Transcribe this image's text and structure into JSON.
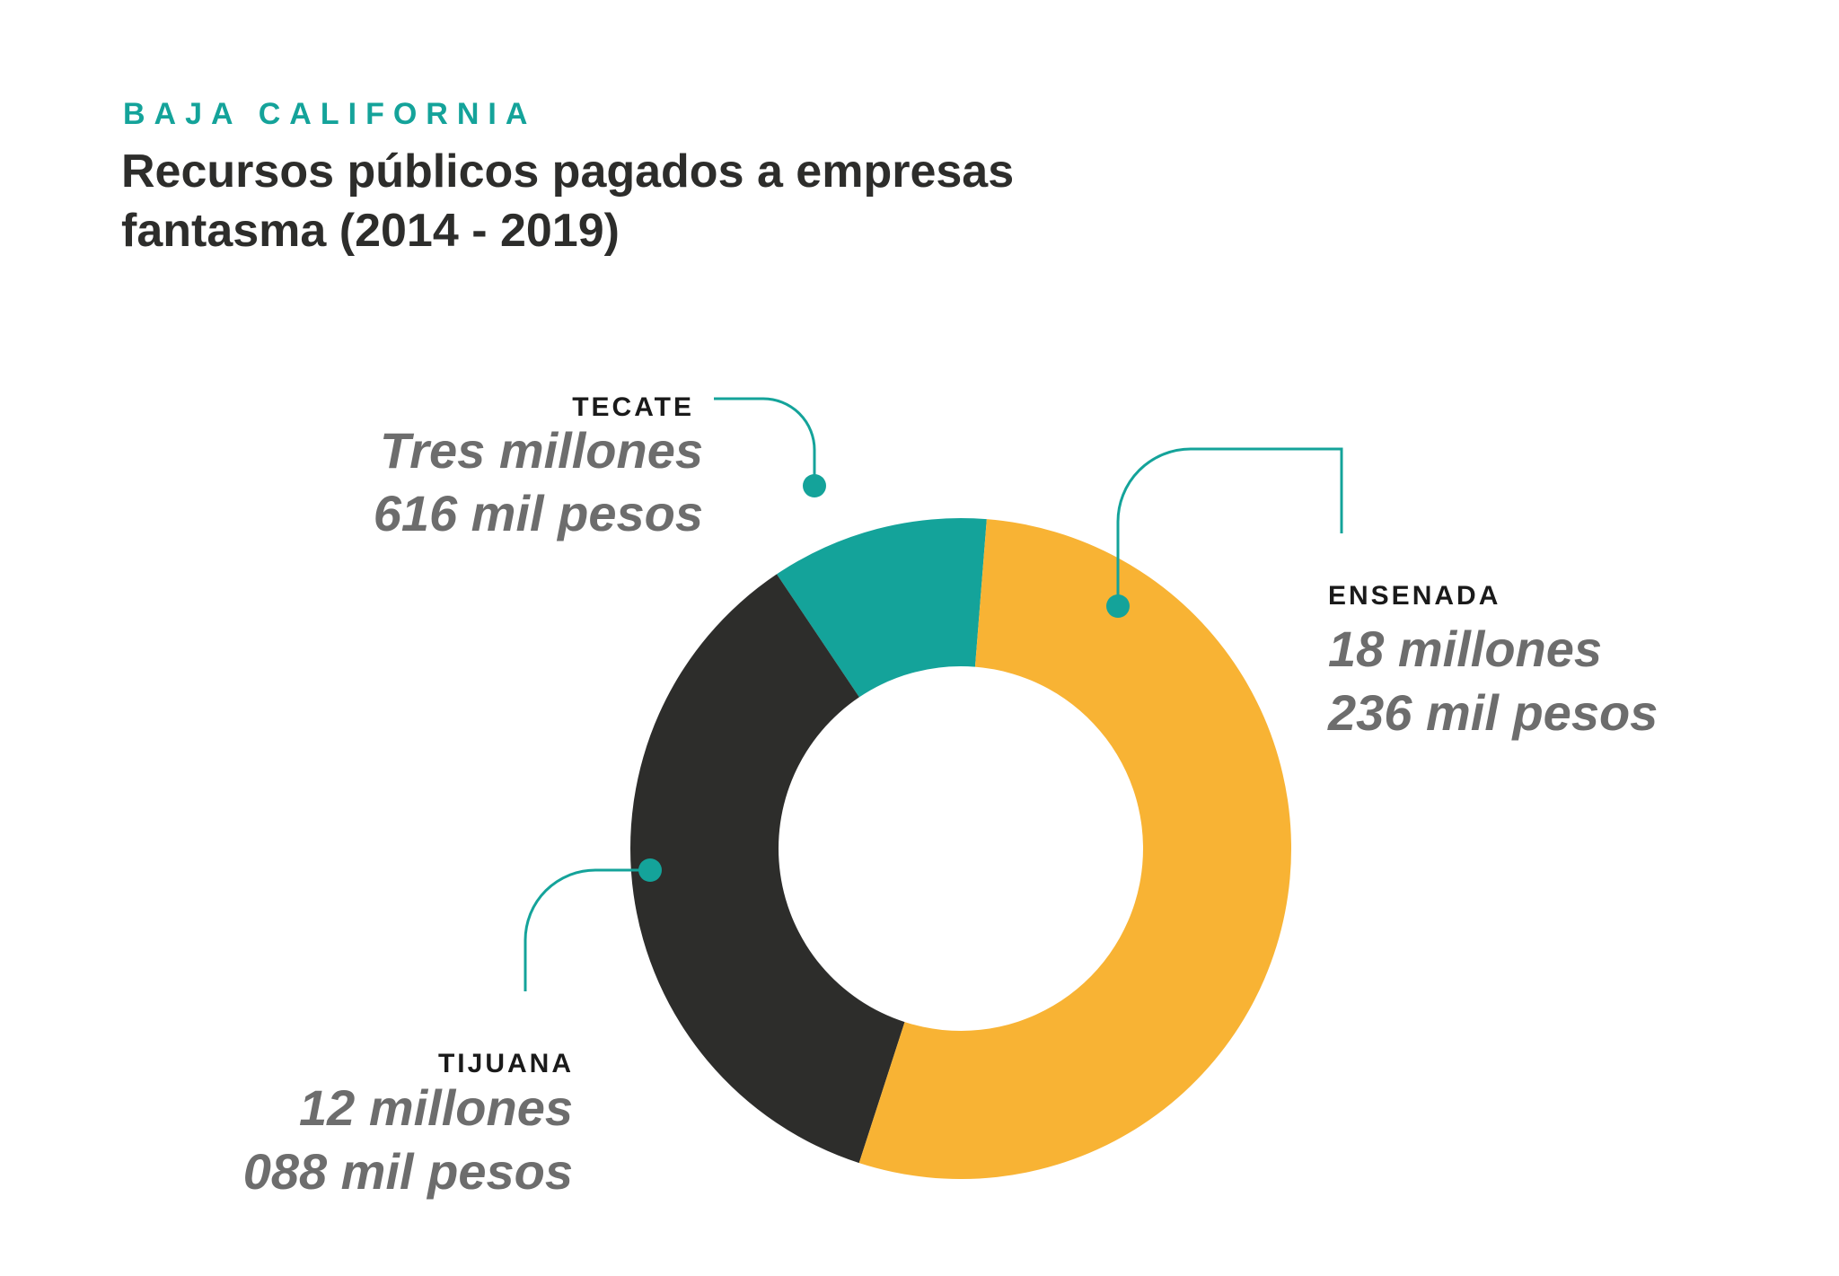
{
  "chart_data": {
    "type": "donut",
    "subtitle": "BAJA CALIFORNIA",
    "title": "Recursos públicos pagados a empresas fantasma (2014 - 2019)",
    "categories": [
      "ENSENADA",
      "TIJUANA",
      "TECATE"
    ],
    "values": [
      18236000,
      12088000,
      3616000
    ],
    "value_labels": [
      [
        "18 millones",
        "236 mil pesos"
      ],
      [
        "12 millones",
        "088 mil pesos"
      ],
      [
        "Tres millones",
        "616 mil pesos"
      ]
    ],
    "colors": [
      "#f8b334",
      "#2d2d2b",
      "#14a39a"
    ]
  }
}
